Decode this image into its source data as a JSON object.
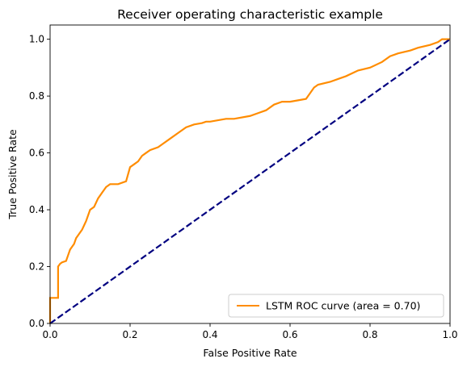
{
  "chart_data": {
    "type": "line",
    "title": "Receiver operating characteristic example",
    "xlabel": "False Positive Rate",
    "ylabel": "True Positive Rate",
    "xlim": [
      0.0,
      1.0
    ],
    "ylim": [
      0.0,
      1.05
    ],
    "xticks": [
      0.0,
      0.2,
      0.4,
      0.6,
      0.8,
      1.0
    ],
    "xtick_labels": [
      "0.0",
      "0.2",
      "0.4",
      "0.6",
      "0.8",
      "1.0"
    ],
    "yticks": [
      0.0,
      0.2,
      0.4,
      0.6,
      0.8,
      1.0
    ],
    "ytick_labels": [
      "0.0",
      "0.2",
      "0.4",
      "0.6",
      "0.8",
      "1.0"
    ],
    "grid": false,
    "legend_position": "lower-right",
    "series": [
      {
        "name": "LSTM ROC curve (area = 0.70)",
        "color": "#ff8c00",
        "style": "solid",
        "x": [
          0.0,
          0.0,
          0.02,
          0.02,
          0.025,
          0.03,
          0.04,
          0.045,
          0.05,
          0.06,
          0.065,
          0.07,
          0.08,
          0.09,
          0.1,
          0.11,
          0.12,
          0.13,
          0.14,
          0.15,
          0.16,
          0.17,
          0.19,
          0.2,
          0.21,
          0.22,
          0.23,
          0.24,
          0.25,
          0.27,
          0.28,
          0.3,
          0.32,
          0.34,
          0.36,
          0.38,
          0.39,
          0.4,
          0.44,
          0.46,
          0.5,
          0.52,
          0.54,
          0.56,
          0.58,
          0.6,
          0.62,
          0.64,
          0.66,
          0.67,
          0.7,
          0.72,
          0.74,
          0.77,
          0.8,
          0.83,
          0.85,
          0.87,
          0.9,
          0.92,
          0.95,
          0.97,
          0.98,
          1.0
        ],
        "y": [
          0.0,
          0.09,
          0.09,
          0.2,
          0.21,
          0.215,
          0.22,
          0.24,
          0.26,
          0.28,
          0.3,
          0.31,
          0.33,
          0.36,
          0.4,
          0.41,
          0.44,
          0.46,
          0.48,
          0.49,
          0.49,
          0.49,
          0.5,
          0.55,
          0.56,
          0.57,
          0.59,
          0.6,
          0.61,
          0.62,
          0.63,
          0.65,
          0.67,
          0.69,
          0.7,
          0.705,
          0.71,
          0.71,
          0.72,
          0.72,
          0.73,
          0.74,
          0.75,
          0.77,
          0.78,
          0.78,
          0.785,
          0.79,
          0.83,
          0.84,
          0.85,
          0.86,
          0.87,
          0.89,
          0.9,
          0.92,
          0.94,
          0.95,
          0.96,
          0.97,
          0.98,
          0.99,
          1.0,
          1.0
        ]
      },
      {
        "name": "",
        "color": "#000080",
        "style": "dashed",
        "x": [
          0.0,
          1.0
        ],
        "y": [
          0.0,
          1.0
        ]
      }
    ]
  }
}
